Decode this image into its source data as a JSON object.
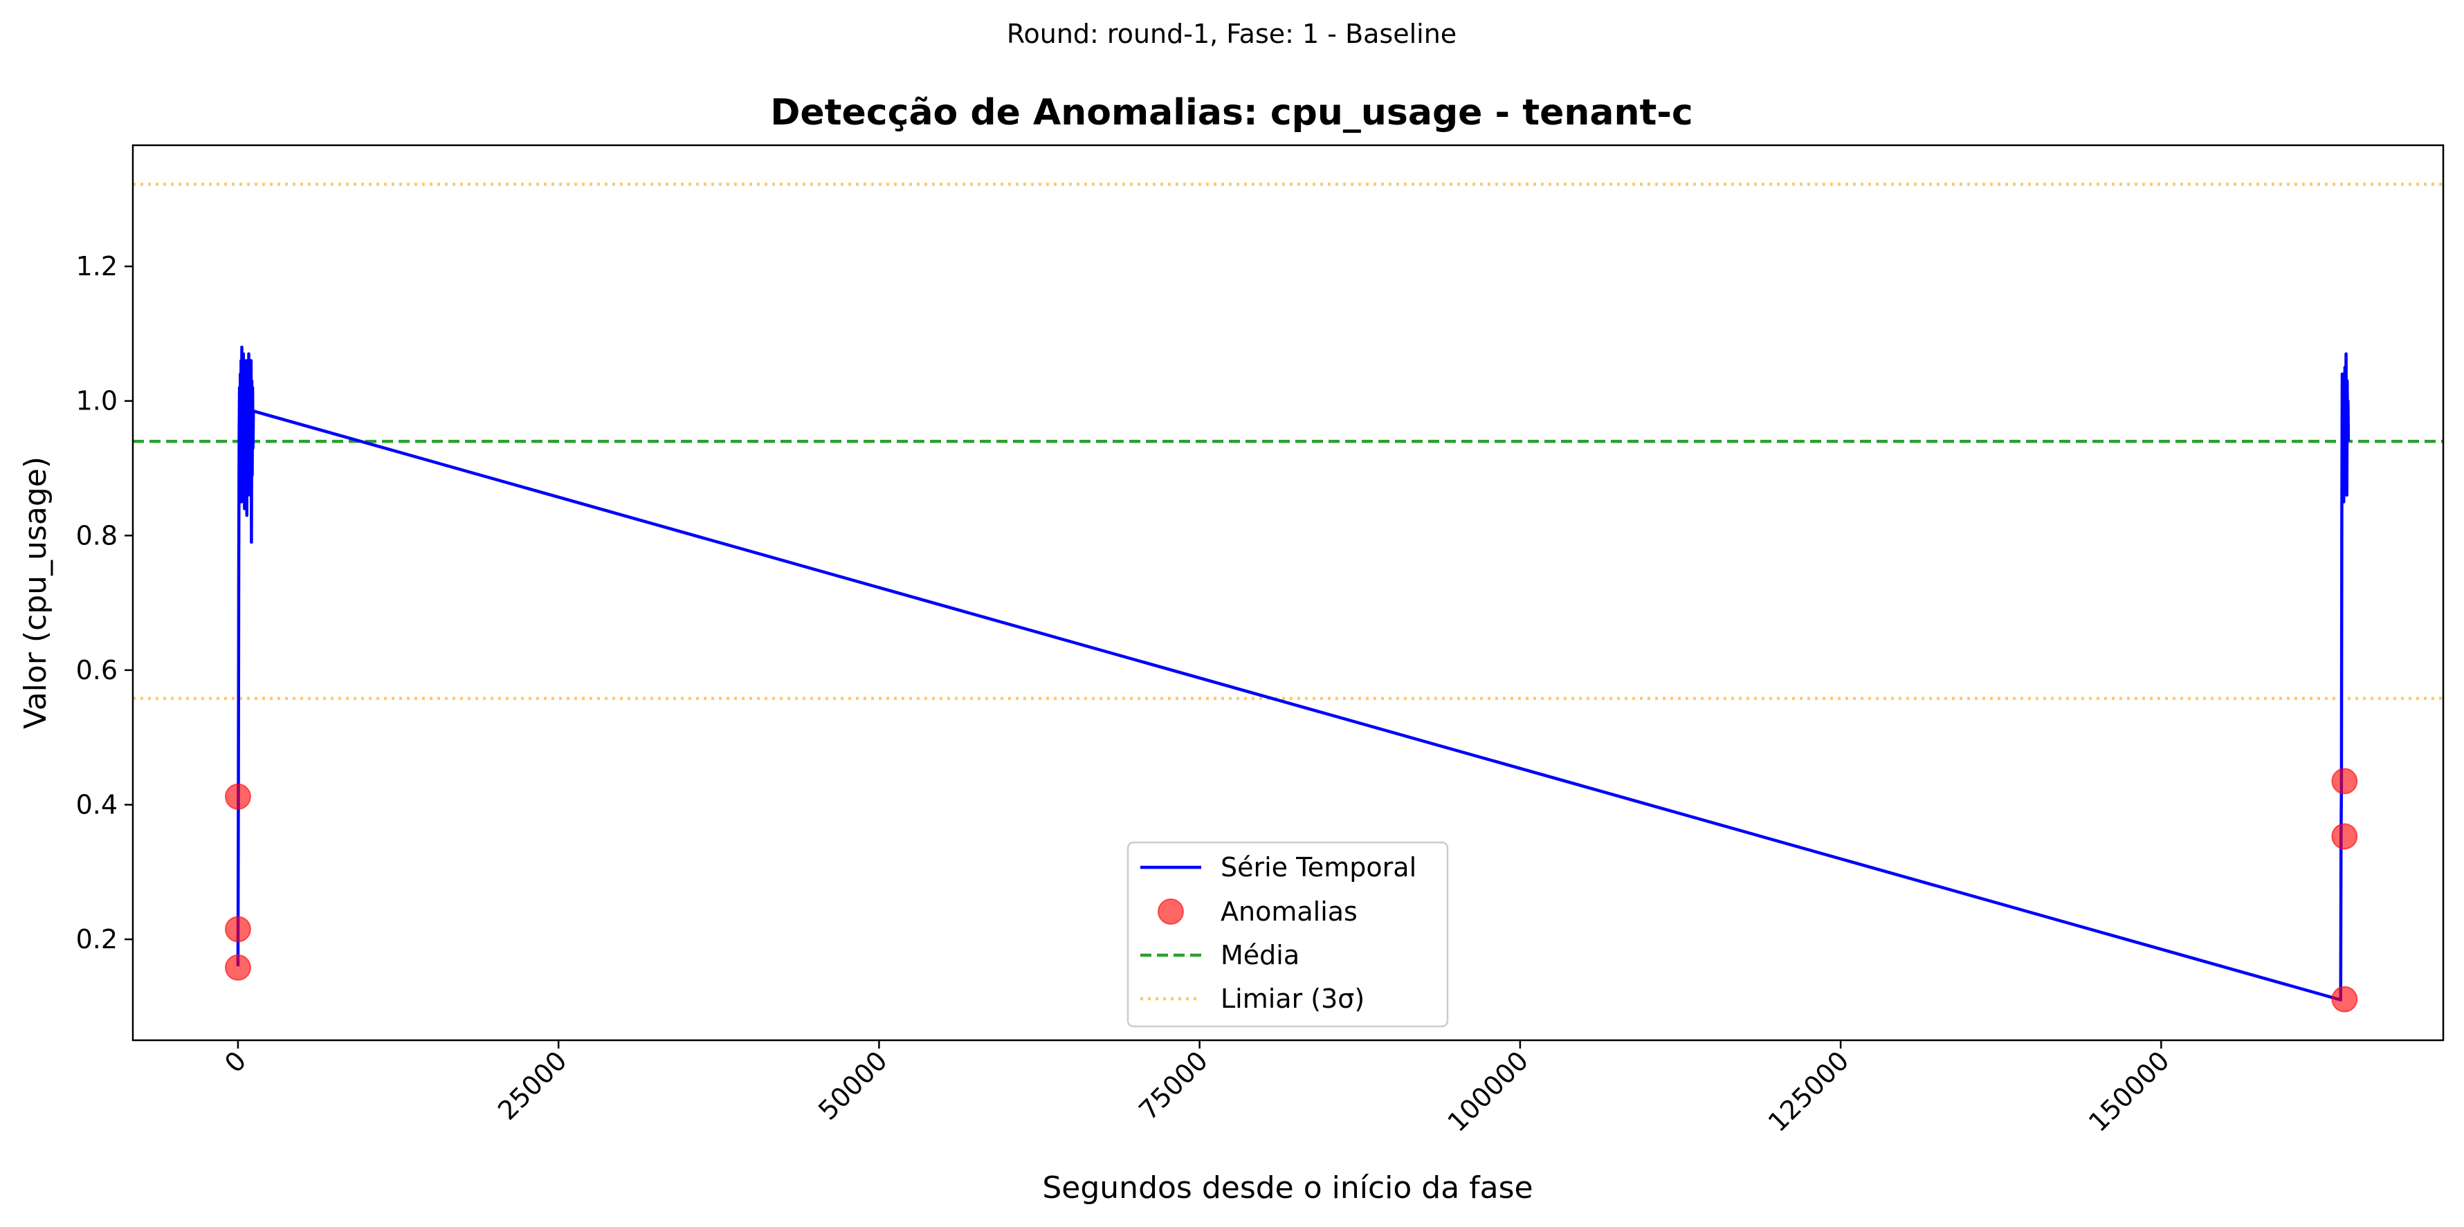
{
  "suptitle": "Round: round-1, Fase: 1 - Baseline",
  "chart_data": {
    "type": "line",
    "title": "Detecção de Anomalias: cpu_usage - tenant-c",
    "xlabel": "Segundos desde o início da fase",
    "ylabel": "Valor (cpu_usage)",
    "xlim": [
      -8200,
      172000
    ],
    "ylim": [
      0.05,
      1.38
    ],
    "xticks": [
      0,
      25000,
      50000,
      75000,
      100000,
      125000,
      150000
    ],
    "yticks": [
      0.2,
      0.4,
      0.6,
      0.8,
      1.0,
      1.2
    ],
    "ytick_labels": [
      "0.2",
      "0.4",
      "0.6",
      "0.8",
      "1.0",
      "1.2"
    ],
    "grid": false,
    "legend_position": "lower center",
    "series": [
      {
        "name": "Série Temporal",
        "kind": "line",
        "color": "#0000ff",
        "x": [
          0,
          30,
          60,
          90,
          120,
          150,
          180,
          210,
          240,
          270,
          300,
          330,
          360,
          390,
          420,
          450,
          480,
          510,
          540,
          570,
          600,
          630,
          660,
          690,
          720,
          750,
          780,
          810,
          840,
          870,
          900,
          930,
          960,
          990,
          1020,
          1050,
          1080,
          1110,
          1140,
          1170,
          1200,
          164000,
          164030,
          164060,
          164090,
          164120,
          164150,
          164180,
          164210,
          164240,
          164270,
          164300,
          164330,
          164360,
          164390,
          164420,
          164450,
          164480,
          164510,
          164540,
          164570,
          164600
        ],
        "y": [
          0.16,
          0.41,
          0.76,
          0.95,
          1.02,
          0.88,
          1.04,
          0.93,
          1.06,
          0.85,
          1.08,
          0.96,
          1.05,
          0.87,
          1.07,
          0.92,
          1.03,
          0.84,
          1.06,
          0.95,
          1.05,
          0.9,
          1.04,
          0.83,
          1.06,
          0.97,
          1.02,
          0.88,
          1.07,
          0.91,
          1.05,
          0.86,
          1.04,
          0.95,
          1.06,
          0.79,
          1.03,
          0.89,
          1.02,
          0.93,
          0.985,
          0.11,
          0.35,
          0.43,
          0.83,
          1.04,
          0.88,
          1.0,
          0.93,
          0.85,
          1.02,
          0.9,
          1.05,
          0.87,
          0.99,
          1.07,
          0.92,
          0.86,
          1.03,
          0.95,
          1.0,
          0.94
        ]
      },
      {
        "name": "Anomalias",
        "kind": "scatter",
        "color": "#ff0000",
        "x": [
          0,
          0,
          0,
          164300,
          164300,
          164300
        ],
        "y": [
          0.158,
          0.215,
          0.412,
          0.111,
          0.353,
          0.435
        ]
      },
      {
        "name": "Média",
        "kind": "hline",
        "color": "#2ca02c",
        "y": 0.94
      },
      {
        "name": "Limiar (3σ)",
        "kind": "hline",
        "color": "#ffa500",
        "y": [
          0.558,
          1.322
        ]
      }
    ]
  }
}
